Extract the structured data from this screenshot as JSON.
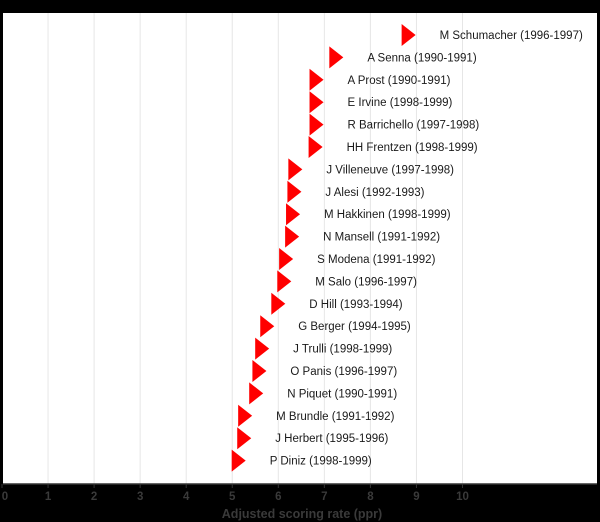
{
  "chart_data": {
    "type": "scatter",
    "title": "",
    "xlabel": "Adjusted scoring rate (ppr)",
    "ylabel": "",
    "xlim": [
      0,
      12.9
    ],
    "x_ticks": [
      0,
      1,
      2,
      3,
      4,
      5,
      6,
      7,
      8,
      9,
      10
    ],
    "grid": "vertical",
    "legend": null,
    "marker": "right-pointing triangle",
    "marker_color": "#ff0000",
    "points": [
      {
        "label": "M Schumacher (1996-1997)",
        "x": 8.83
      },
      {
        "label": "A Senna (1990-1991)",
        "x": 7.26
      },
      {
        "label": "A Prost (1990-1991)",
        "x": 6.83
      },
      {
        "label": "E Irvine (1998-1999)",
        "x": 6.83
      },
      {
        "label": "R Barrichello (1997-1998)",
        "x": 6.83
      },
      {
        "label": "HH Frentzen (1998-1999)",
        "x": 6.81
      },
      {
        "label": "J Villeneuve (1997-1998)",
        "x": 6.37
      },
      {
        "label": "J Alesi (1992-1993)",
        "x": 6.35
      },
      {
        "label": "M Hakkinen (1998-1999)",
        "x": 6.32
      },
      {
        "label": "N Mansell (1991-1992)",
        "x": 6.3
      },
      {
        "label": "S Modena (1991-1992)",
        "x": 6.17
      },
      {
        "label": "M Salo (1996-1997)",
        "x": 6.13
      },
      {
        "label": "D Hill (1993-1994)",
        "x": 6.0
      },
      {
        "label": "G Berger (1994-1995)",
        "x": 5.76
      },
      {
        "label": "J Trulli (1998-1999)",
        "x": 5.65
      },
      {
        "label": "O Panis (1996-1997)",
        "x": 5.59
      },
      {
        "label": "N Piquet (1990-1991)",
        "x": 5.52
      },
      {
        "label": "M Brundle (1991-1992)",
        "x": 5.28
      },
      {
        "label": "J Herbert (1995-1996)",
        "x": 5.26
      },
      {
        "label": "P Diniz (1998-1999)",
        "x": 5.14
      }
    ]
  },
  "colors": {
    "background": "#000000",
    "plot_background": "#ffffff",
    "gridline": "#e6e6e6",
    "marker": "#ff0000",
    "label_text": "#1a1a1a",
    "axis_text": "#3a3a3a"
  }
}
